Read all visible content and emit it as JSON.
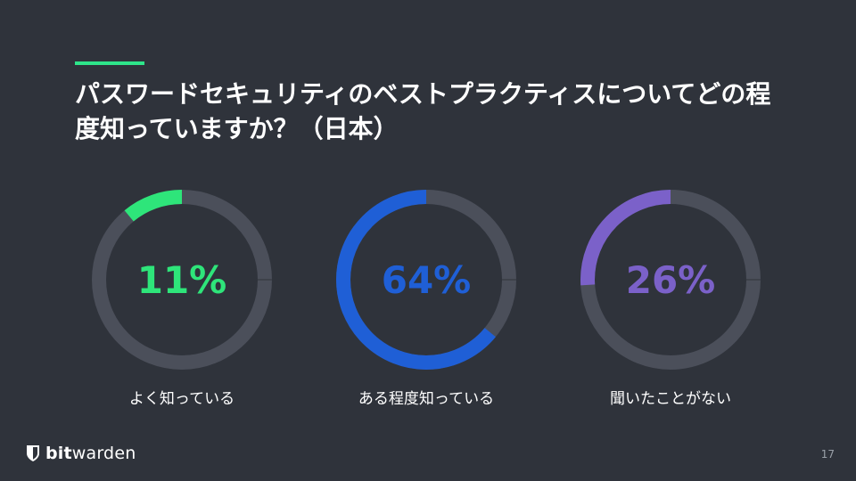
{
  "slide": {
    "title": "パスワードセキュリティのベストプラクティスについてどの程度知っていますか？（日本）",
    "page_number": "17"
  },
  "brand": {
    "bold": "bit",
    "regular": "warden"
  },
  "colors": {
    "background": "#2f333b",
    "track": "#4b4f5a",
    "accent": "#2ee58a"
  },
  "chart_data": [
    {
      "type": "pie",
      "categories": [
        "よく知っている"
      ],
      "values": [
        11
      ],
      "display_value": "11%",
      "color": "#2ee57a"
    },
    {
      "type": "pie",
      "categories": [
        "ある程度知っている"
      ],
      "values": [
        64
      ],
      "display_value": "64%",
      "color": "#1f5fd6"
    },
    {
      "type": "pie",
      "categories": [
        "聞いたことがない"
      ],
      "values": [
        26
      ],
      "display_value": "26%",
      "color": "#7b61c9"
    }
  ]
}
